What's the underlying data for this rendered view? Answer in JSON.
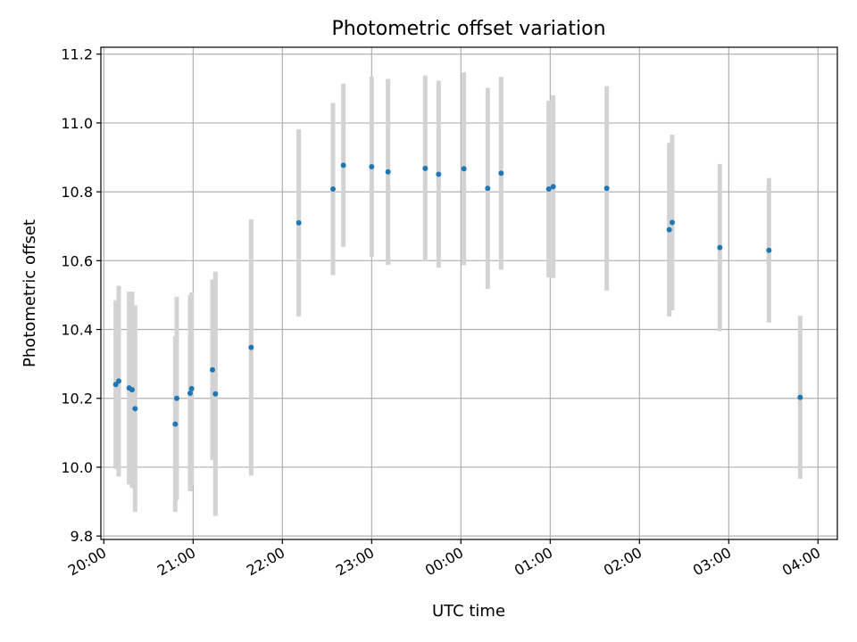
{
  "chart_data": {
    "type": "scatter",
    "title": "Photometric offset variation",
    "xlabel": "UTC time",
    "ylabel": "Photometric offset",
    "x_unit": "UTC time (HH:MM)",
    "xlim": [
      "19:58",
      "04:13"
    ],
    "ylim": [
      9.79,
      11.22
    ],
    "x_ticks": [
      "20:00",
      "21:00",
      "22:00",
      "23:00",
      "00:00",
      "01:00",
      "02:00",
      "03:00",
      "04:00"
    ],
    "y_ticks": [
      "9.8",
      "10.0",
      "10.2",
      "10.4",
      "10.6",
      "10.8",
      "11.0",
      "11.2"
    ],
    "grid": true,
    "colors": {
      "point": "#1f77b4",
      "errorbar": "#d3d3d3",
      "grid": "#b0b0b0"
    },
    "series": [
      {
        "points": [
          {
            "x": "20:08",
            "y": 10.24,
            "err": 0.245
          },
          {
            "x": "20:10",
            "y": 10.25,
            "err": 0.277
          },
          {
            "x": "20:17",
            "y": 10.23,
            "err": 0.28
          },
          {
            "x": "20:19",
            "y": 10.225,
            "err": 0.285
          },
          {
            "x": "20:21",
            "y": 10.17,
            "err": 0.3
          },
          {
            "x": "20:48",
            "y": 10.125,
            "err": 0.255
          },
          {
            "x": "20:49",
            "y": 10.2,
            "err": 0.295
          },
          {
            "x": "20:58",
            "y": 10.215,
            "err": 0.285
          },
          {
            "x": "20:59",
            "y": 10.228,
            "err": 0.28
          },
          {
            "x": "21:13",
            "y": 10.283,
            "err": 0.262
          },
          {
            "x": "21:15",
            "y": 10.213,
            "err": 0.355
          },
          {
            "x": "21:39",
            "y": 10.348,
            "err": 0.372
          },
          {
            "x": "22:11",
            "y": 10.71,
            "err": 0.272
          },
          {
            "x": "22:34",
            "y": 10.808,
            "err": 0.25
          },
          {
            "x": "22:41",
            "y": 10.877,
            "err": 0.237
          },
          {
            "x": "23:00",
            "y": 10.873,
            "err": 0.262
          },
          {
            "x": "23:11",
            "y": 10.858,
            "err": 0.27
          },
          {
            "x": "23:36",
            "y": 10.868,
            "err": 0.27
          },
          {
            "x": "23:45",
            "y": 10.851,
            "err": 0.272
          },
          {
            "x": "00:02",
            "y": 10.867,
            "err": 0.28
          },
          {
            "x": "00:18",
            "y": 10.81,
            "err": 0.292
          },
          {
            "x": "00:27",
            "y": 10.854,
            "err": 0.28
          },
          {
            "x": "00:59",
            "y": 10.808,
            "err": 0.257
          },
          {
            "x": "01:02",
            "y": 10.815,
            "err": 0.265
          },
          {
            "x": "01:38",
            "y": 10.81,
            "err": 0.297
          },
          {
            "x": "02:20",
            "y": 10.69,
            "err": 0.252
          },
          {
            "x": "02:22",
            "y": 10.711,
            "err": 0.255
          },
          {
            "x": "02:54",
            "y": 10.638,
            "err": 0.243
          },
          {
            "x": "03:27",
            "y": 10.63,
            "err": 0.21
          },
          {
            "x": "03:48",
            "y": 10.203,
            "err": 0.237
          }
        ]
      }
    ]
  }
}
